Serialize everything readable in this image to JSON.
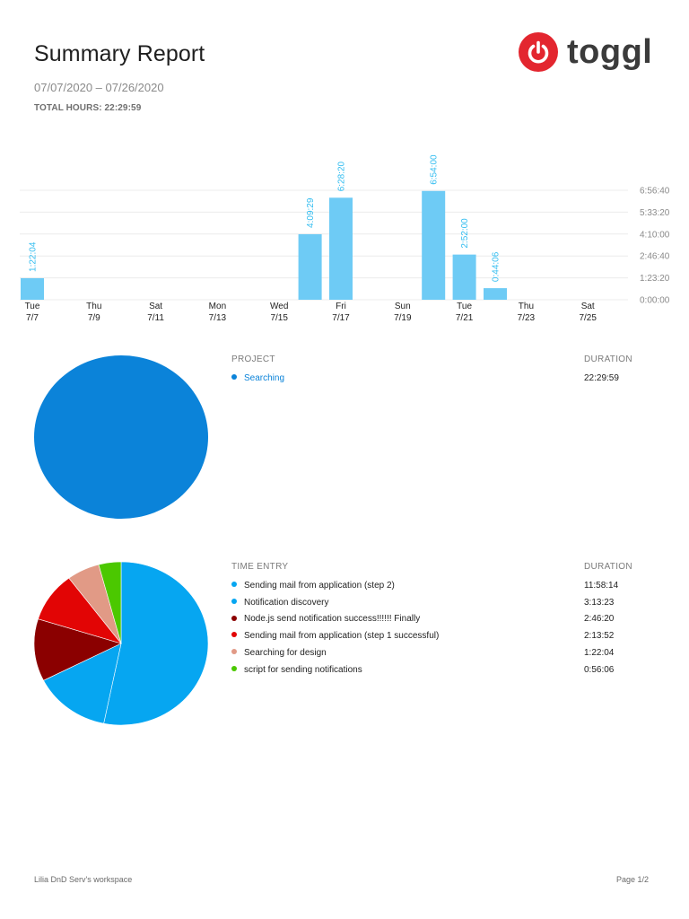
{
  "header": {
    "title": "Summary Report",
    "date_range": "07/07/2020 – 07/26/2020",
    "total_hours_label": "TOTAL HOURS: 22:29:59",
    "logo_text": "toggl",
    "logo_color": "#e3262f"
  },
  "chart_data": [
    {
      "type": "bar",
      "title": "",
      "xlabel": "",
      "ylabel": "",
      "bar_color": "#6ecbf5",
      "label_color": "#33bdf0",
      "y_ticks": [
        "0:00:00",
        "1:23:20",
        "2:46:40",
        "4:10:00",
        "5:33:20",
        "6:56:40"
      ],
      "y_tick_seconds": [
        0,
        5000,
        10000,
        15000,
        20000,
        25000
      ],
      "ylim": [
        0,
        25000
      ],
      "grid": true,
      "x_tick_labels": [
        {
          "day": "Tue",
          "date": "7/7"
        },
        {
          "day": "Thu",
          "date": "7/9"
        },
        {
          "day": "Sat",
          "date": "7/11"
        },
        {
          "day": "Mon",
          "date": "7/13"
        },
        {
          "day": "Wed",
          "date": "7/15"
        },
        {
          "day": "Fri",
          "date": "7/17"
        },
        {
          "day": "Sun",
          "date": "7/19"
        },
        {
          "day": "Tue",
          "date": "7/21"
        },
        {
          "day": "Thu",
          "date": "7/23"
        },
        {
          "day": "Sat",
          "date": "7/25"
        }
      ],
      "categories": [
        "7/7",
        "7/8",
        "7/9",
        "7/10",
        "7/11",
        "7/12",
        "7/13",
        "7/14",
        "7/15",
        "7/16",
        "7/17",
        "7/18",
        "7/19",
        "7/20",
        "7/21",
        "7/22",
        "7/23",
        "7/24",
        "7/25",
        "7/26"
      ],
      "bars": [
        {
          "date": "7/7",
          "index": 0,
          "label": "1:22:04",
          "seconds": 4924
        },
        {
          "date": "7/16",
          "index": 9,
          "label": "4:09:29",
          "seconds": 14969
        },
        {
          "date": "7/17",
          "index": 10,
          "label": "6:28:20",
          "seconds": 23300
        },
        {
          "date": "7/20",
          "index": 13,
          "label": "6:54:00",
          "seconds": 24840
        },
        {
          "date": "7/21",
          "index": 14,
          "label": "2:52:00",
          "seconds": 10320
        },
        {
          "date": "7/22",
          "index": 15,
          "label": "0:44:06",
          "seconds": 2646
        }
      ]
    },
    {
      "type": "pie",
      "title": "Project",
      "slices": [
        {
          "label": "Searching",
          "duration": "22:29:59",
          "seconds": 80999,
          "color": "#0b83d9"
        }
      ]
    },
    {
      "type": "pie",
      "title": "Time Entry",
      "slices": [
        {
          "label": "Sending mail from application (step 2)",
          "duration": "11:58:14",
          "seconds": 43094,
          "color": "#06a6f1"
        },
        {
          "label": "Notification discovery",
          "duration": "3:13:23",
          "seconds": 11603,
          "color": "#06a6f1"
        },
        {
          "label": "Node.js send notification success!!!!!! Finally",
          "duration": "2:46:20",
          "seconds": 9980,
          "color": "#8b0000"
        },
        {
          "label": "Sending mail from application (step 1 successful)",
          "duration": "2:13:52",
          "seconds": 8032,
          "color": "#e20505"
        },
        {
          "label": "Searching for design",
          "duration": "1:22:04",
          "seconds": 4924,
          "color": "#e19a86"
        },
        {
          "label": "script for sending notifications",
          "duration": "0:56:06",
          "seconds": 3366,
          "color": "#4bc800"
        }
      ]
    }
  ],
  "project_table": {
    "col_project": "PROJECT",
    "col_duration": "DURATION",
    "rows": [
      {
        "name": "Searching",
        "duration": "22:29:59",
        "color": "#0b83d9"
      }
    ]
  },
  "entry_table": {
    "col_entry": "TIME ENTRY",
    "col_duration": "DURATION",
    "rows": [
      {
        "name": "Sending mail from application (step 2)",
        "duration": "11:58:14",
        "color": "#06a6f1"
      },
      {
        "name": "Notification discovery",
        "duration": "3:13:23",
        "color": "#06a6f1"
      },
      {
        "name": "Node.js send notification success!!!!!! Finally",
        "duration": "2:46:20",
        "color": "#8b0000"
      },
      {
        "name": "Sending mail from application (step 1 successful)",
        "duration": "2:13:52",
        "color": "#e20505"
      },
      {
        "name": "Searching for design",
        "duration": "1:22:04",
        "color": "#e19a86"
      },
      {
        "name": "script for sending notifications",
        "duration": "0:56:06",
        "color": "#4bc800"
      }
    ]
  },
  "footer": {
    "workspace": "Lilia DnD Serv's workspace",
    "page": "Page 1/2"
  }
}
